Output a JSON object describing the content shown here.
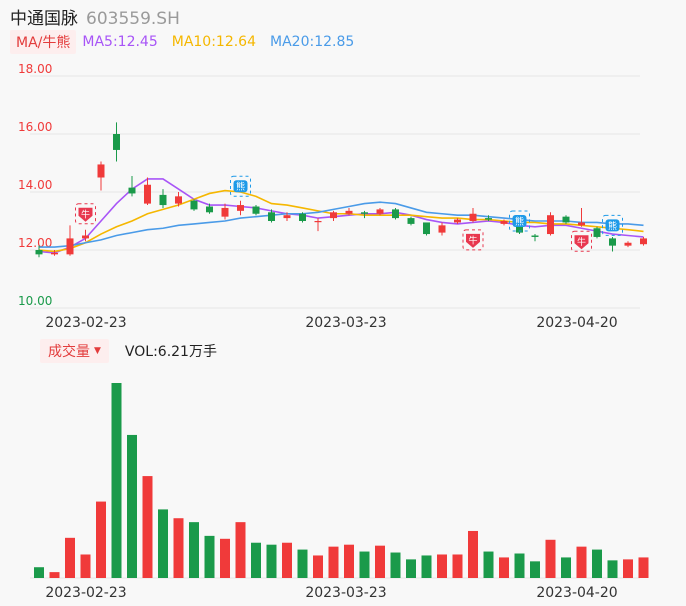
{
  "header": {
    "name": "中通国脉",
    "code": "603559.SH"
  },
  "ma": {
    "chip": "MA/牛熊",
    "items": [
      {
        "label": "MA5:12.45",
        "color": "#a855f7"
      },
      {
        "label": "MA10:12.64",
        "color": "#f5b700"
      },
      {
        "label": "MA20:12.85",
        "color": "#4a9be8"
      }
    ]
  },
  "volume": {
    "chip": "成交量",
    "caret": "▼",
    "value": "VOL:6.21万手"
  },
  "icons": {
    "bull": "牛",
    "bear": "熊",
    "bull_icon_color": "#e8384f",
    "bear_icon_color": "#1e9ae8"
  },
  "colors": {
    "up": "#f03a3a",
    "down": "#1a9a4a",
    "grid": "#e6e6e6"
  },
  "chart_data": {
    "type": "candlestick",
    "price_axis": {
      "ticks": [
        "18.00",
        "16.00",
        "14.00",
        "12.00",
        "10.00"
      ],
      "ylim": [
        10,
        18
      ]
    },
    "x_labels": [
      "2023-02-23",
      "2023-03-23",
      "2023-04-20"
    ],
    "candles": [
      {
        "o": 12.0,
        "c": 11.85,
        "h": 12.15,
        "l": 11.75
      },
      {
        "o": 11.85,
        "c": 11.9,
        "h": 12.0,
        "l": 11.8
      },
      {
        "o": 11.85,
        "c": 12.4,
        "h": 12.85,
        "l": 11.8
      },
      {
        "o": 12.4,
        "c": 12.5,
        "h": 12.7,
        "l": 12.3
      },
      {
        "o": 14.5,
        "c": 14.95,
        "h": 15.05,
        "l": 14.05
      },
      {
        "o": 16.0,
        "c": 15.45,
        "h": 16.4,
        "l": 15.05
      },
      {
        "o": 14.15,
        "c": 13.95,
        "h": 14.55,
        "l": 13.85
      },
      {
        "o": 13.6,
        "c": 14.25,
        "h": 14.5,
        "l": 13.55
      },
      {
        "o": 13.9,
        "c": 13.55,
        "h": 14.1,
        "l": 13.45
      },
      {
        "o": 13.6,
        "c": 13.85,
        "h": 14.0,
        "l": 13.5
      },
      {
        "o": 13.7,
        "c": 13.4,
        "h": 13.75,
        "l": 13.35
      },
      {
        "o": 13.5,
        "c": 13.3,
        "h": 13.6,
        "l": 13.25
      },
      {
        "o": 13.15,
        "c": 13.45,
        "h": 13.6,
        "l": 13.05
      },
      {
        "o": 13.35,
        "c": 13.55,
        "h": 13.7,
        "l": 13.2
      },
      {
        "o": 13.5,
        "c": 13.25,
        "h": 13.55,
        "l": 13.2
      },
      {
        "o": 13.3,
        "c": 13.0,
        "h": 13.4,
        "l": 12.95
      },
      {
        "o": 13.1,
        "c": 13.2,
        "h": 13.3,
        "l": 13.0
      },
      {
        "o": 13.25,
        "c": 13.0,
        "h": 13.3,
        "l": 12.95
      },
      {
        "o": 13.0,
        "c": 13.0,
        "h": 13.1,
        "l": 12.65
      },
      {
        "o": 13.1,
        "c": 13.3,
        "h": 13.35,
        "l": 13.0
      },
      {
        "o": 13.25,
        "c": 13.35,
        "h": 13.45,
        "l": 13.2
      },
      {
        "o": 13.3,
        "c": 13.25,
        "h": 13.35,
        "l": 13.1
      },
      {
        "o": 13.25,
        "c": 13.4,
        "h": 13.45,
        "l": 13.2
      },
      {
        "o": 13.4,
        "c": 13.1,
        "h": 13.45,
        "l": 13.05
      },
      {
        "o": 13.1,
        "c": 12.9,
        "h": 13.15,
        "l": 12.85
      },
      {
        "o": 12.95,
        "c": 12.55,
        "h": 12.95,
        "l": 12.5
      },
      {
        "o": 12.6,
        "c": 12.85,
        "h": 12.95,
        "l": 12.5
      },
      {
        "o": 12.95,
        "c": 13.05,
        "h": 13.1,
        "l": 12.9
      },
      {
        "o": 13.0,
        "c": 13.25,
        "h": 13.45,
        "l": 12.95
      },
      {
        "o": 13.1,
        "c": 13.05,
        "h": 13.2,
        "l": 13.0
      },
      {
        "o": 12.9,
        "c": 13.0,
        "h": 13.05,
        "l": 12.85
      },
      {
        "o": 13.05,
        "c": 12.6,
        "h": 13.1,
        "l": 12.55
      },
      {
        "o": 12.5,
        "c": 12.45,
        "h": 12.55,
        "l": 12.3
      },
      {
        "o": 12.55,
        "c": 13.2,
        "h": 13.3,
        "l": 12.5
      },
      {
        "o": 13.15,
        "c": 12.95,
        "h": 13.2,
        "l": 12.9
      },
      {
        "o": 12.85,
        "c": 12.95,
        "h": 13.45,
        "l": 12.8
      },
      {
        "o": 12.75,
        "c": 12.45,
        "h": 12.8,
        "l": 12.4
      },
      {
        "o": 12.4,
        "c": 12.15,
        "h": 12.45,
        "l": 11.95
      },
      {
        "o": 12.15,
        "c": 12.25,
        "h": 12.3,
        "l": 12.1
      },
      {
        "o": 12.2,
        "c": 12.4,
        "h": 12.45,
        "l": 12.15
      }
    ],
    "ma5": [
      11.95,
      11.9,
      12.1,
      12.4,
      13.0,
      13.6,
      14.1,
      14.45,
      14.45,
      14.1,
      13.75,
      13.55,
      13.55,
      13.5,
      13.45,
      13.35,
      13.25,
      13.2,
      13.1,
      13.15,
      13.2,
      13.25,
      13.25,
      13.3,
      13.2,
      13.05,
      12.95,
      12.9,
      12.95,
      13.0,
      12.95,
      12.85,
      12.8,
      12.85,
      12.85,
      12.75,
      12.65,
      12.55,
      12.5,
      12.45
    ],
    "ma10": [
      12.0,
      11.95,
      12.05,
      12.25,
      12.55,
      12.8,
      13.0,
      13.25,
      13.4,
      13.55,
      13.75,
      13.95,
      14.05,
      14.0,
      13.85,
      13.6,
      13.55,
      13.45,
      13.35,
      13.25,
      13.25,
      13.2,
      13.2,
      13.2,
      13.2,
      13.15,
      13.1,
      13.1,
      13.05,
      13.05,
      13.0,
      12.95,
      12.95,
      12.9,
      12.9,
      12.85,
      12.8,
      12.75,
      12.7,
      12.64
    ],
    "ma20": [
      12.1,
      12.1,
      12.15,
      12.25,
      12.35,
      12.5,
      12.6,
      12.7,
      12.75,
      12.85,
      12.9,
      12.95,
      13.0,
      13.1,
      13.15,
      13.2,
      13.25,
      13.25,
      13.3,
      13.4,
      13.5,
      13.6,
      13.65,
      13.6,
      13.45,
      13.3,
      13.25,
      13.2,
      13.2,
      13.15,
      13.1,
      13.05,
      13.0,
      13.0,
      13.0,
      12.95,
      12.95,
      12.9,
      12.9,
      12.85
    ],
    "volume": [
      0.55,
      0.3,
      2.05,
      1.2,
      3.9,
      9.95,
      7.3,
      5.2,
      3.5,
      3.05,
      2.85,
      2.15,
      2.0,
      2.85,
      1.8,
      1.7,
      1.8,
      1.45,
      1.15,
      1.6,
      1.7,
      1.35,
      1.65,
      1.3,
      0.95,
      1.15,
      1.2,
      1.2,
      2.4,
      1.35,
      1.05,
      1.25,
      0.85,
      1.95,
      1.05,
      1.6,
      1.45,
      0.9,
      0.95,
      1.05
    ],
    "signals": [
      {
        "type": "bull",
        "index": 3,
        "price": 13.25
      },
      {
        "type": "bear",
        "index": 13,
        "price": 14.2
      },
      {
        "type": "bull",
        "index": 28,
        "price": 12.35
      },
      {
        "type": "bear",
        "index": 31,
        "price": 13.0
      },
      {
        "type": "bull",
        "index": 35,
        "price": 12.3
      },
      {
        "type": "bear",
        "index": 37,
        "price": 12.85
      }
    ]
  }
}
